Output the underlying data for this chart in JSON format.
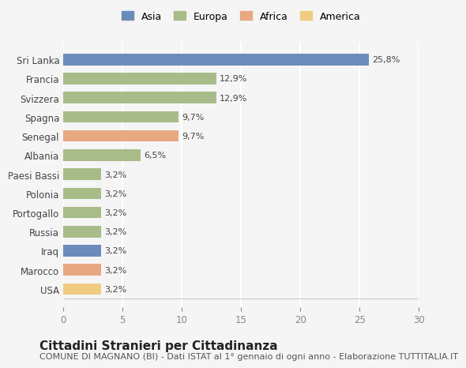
{
  "categories": [
    "Sri Lanka",
    "Francia",
    "Svizzera",
    "Spagna",
    "Senegal",
    "Albania",
    "Paesi Bassi",
    "Polonia",
    "Portogallo",
    "Russia",
    "Iraq",
    "Marocco",
    "USA"
  ],
  "values": [
    25.8,
    12.9,
    12.9,
    9.7,
    9.7,
    6.5,
    3.2,
    3.2,
    3.2,
    3.2,
    3.2,
    3.2,
    3.2
  ],
  "labels": [
    "25,8%",
    "12,9%",
    "12,9%",
    "9,7%",
    "9,7%",
    "6,5%",
    "3,2%",
    "3,2%",
    "3,2%",
    "3,2%",
    "3,2%",
    "3,2%",
    "3,2%"
  ],
  "colors": [
    "#6b8cba",
    "#a8bc8a",
    "#a8bc8a",
    "#a8bc8a",
    "#e8a882",
    "#a8bc8a",
    "#a8bc8a",
    "#a8bc8a",
    "#a8bc8a",
    "#a8bc8a",
    "#6b8cba",
    "#e8a882",
    "#f0cc80"
  ],
  "legend_labels": [
    "Asia",
    "Europa",
    "Africa",
    "America"
  ],
  "legend_colors": [
    "#6b8cba",
    "#a8bc8a",
    "#e8a882",
    "#f0cc80"
  ],
  "title": "Cittadini Stranieri per Cittadinanza",
  "subtitle": "COMUNE DI MAGNANO (BI) - Dati ISTAT al 1° gennaio di ogni anno - Elaborazione TUTTITALIA.IT",
  "xlim": [
    0,
    30
  ],
  "xticks": [
    0,
    5,
    10,
    15,
    20,
    25,
    30
  ],
  "background_color": "#f5f5f5",
  "grid_color": "#ffffff",
  "bar_height": 0.6,
  "title_fontsize": 11,
  "subtitle_fontsize": 8,
  "label_fontsize": 8,
  "tick_fontsize": 8.5,
  "legend_fontsize": 9
}
